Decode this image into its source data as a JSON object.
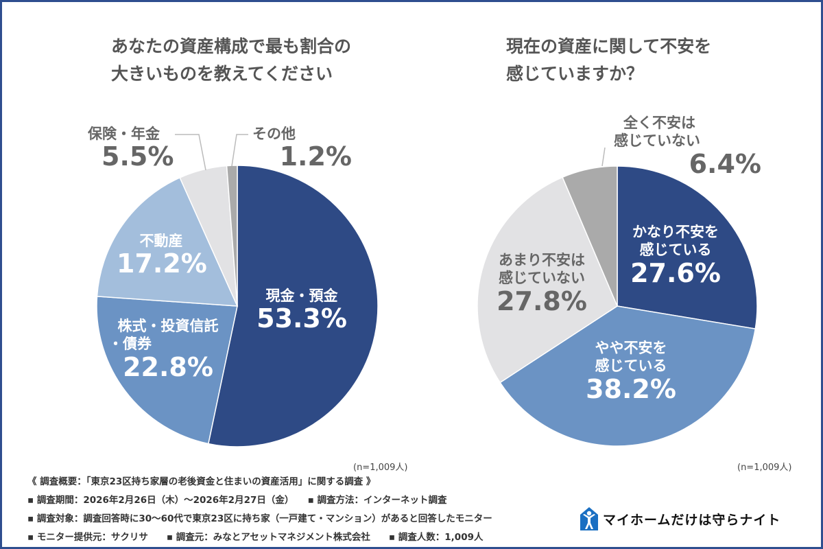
{
  "chart_data": [
    {
      "type": "pie",
      "title": "あなたの資産構成で最も割合の大きいものを教えてください",
      "title_lines": [
        "あなたの資産構成で最も割合の",
        "大きいものを教えてください"
      ],
      "slices": [
        {
          "label": "現金・預金",
          "value": 53.3,
          "value_label": "53.3%",
          "color": "#2e4a85"
        },
        {
          "label": "株式・投資信託・債券",
          "label_lines": [
            "株式・投資信託",
            "・債券"
          ],
          "value": 22.8,
          "value_label": "22.8%",
          "color": "#6b93c4"
        },
        {
          "label": "不動産",
          "value": 17.2,
          "value_label": "17.2%",
          "color": "#a3bedc"
        },
        {
          "label": "保険・年金",
          "value": 5.5,
          "value_label": "5.5%",
          "color": "#e2e2e4"
        },
        {
          "label": "その他",
          "value": 1.2,
          "value_label": "1.2%",
          "color": "#aaaaaa"
        }
      ],
      "note": "(n=1,009人)"
    },
    {
      "type": "pie",
      "title": "現在の資産に関して不安を感じていますか？",
      "title_lines": [
        "現在の資産に関して不安を",
        "感じていますか？"
      ],
      "slices": [
        {
          "label": "かなり不安を感じている",
          "label_lines": [
            "かなり不安を",
            "感じている"
          ],
          "value": 27.6,
          "value_label": "27.6%",
          "color": "#2e4a85"
        },
        {
          "label": "やや不安を感じている",
          "label_lines": [
            "やや不安を",
            "感じている"
          ],
          "value": 38.2,
          "value_label": "38.2%",
          "color": "#6b93c4"
        },
        {
          "label": "あまり不安は感じていない",
          "label_lines": [
            "あまり不安は",
            "感じていない"
          ],
          "value": 27.8,
          "value_label": "27.8%",
          "color": "#e2e2e4"
        },
        {
          "label": "全く不安は感じていない",
          "label_lines": [
            "全く不安は",
            "感じていない"
          ],
          "value": 6.4,
          "value_label": "6.4%",
          "color": "#aaaaaa"
        }
      ],
      "note": "(n=1,009人)"
    }
  ],
  "footer": {
    "lines": [
      "《 調査概要：「東京23区持ち家層の老後資金と住まいの資産活用」に関する調査 》",
      "▪ 調査期間：2026年2月26日（木）〜2026年2月27日（金）　　▪ 調査方法：インターネット調査",
      "▪ 調査対象：調査回答時に30〜60代で東京23区に持ち家（一戸建て・マンション）があると回答したモニター",
      "▪ モニター提供元：サクリサ　　▪ 調査元：みなとアセットマネジメント株式会社　　▪ 調査人数：1,009人"
    ]
  },
  "logo": {
    "text": "マイホームだけは守らナイト",
    "icon": "person-house-icon",
    "color": "#1a6fc2"
  },
  "colors": {
    "frame": "#2f4f8f"
  }
}
